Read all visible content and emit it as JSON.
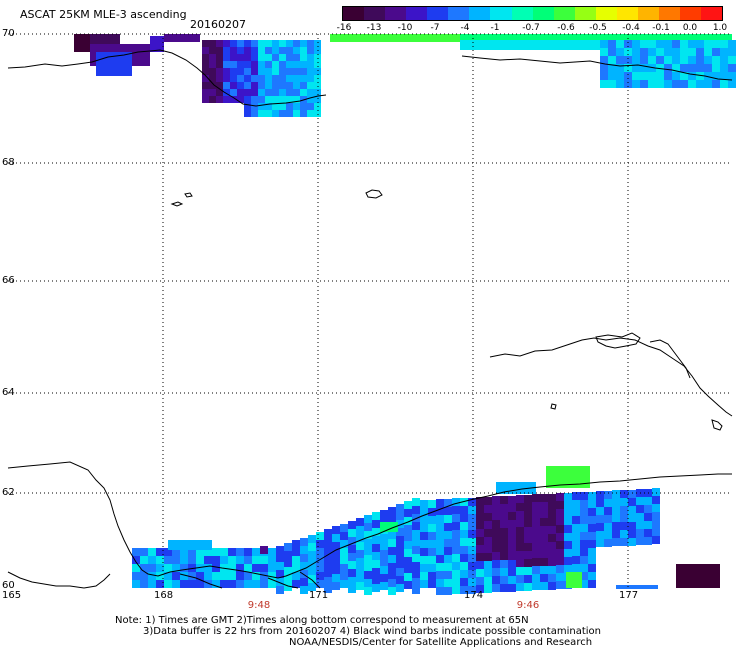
{
  "header": {
    "title": "ASCAT 25KM MLE-3 ascending",
    "date": "20160207"
  },
  "colorbar": {
    "labels": [
      "-16",
      "-13",
      "-10",
      "-7",
      "-4",
      "-1",
      "-0.7",
      "-0.6",
      "-0.5",
      "-0.4",
      "-0.1",
      "0.0",
      "1.0"
    ],
    "colors": [
      "#3a0033",
      "#3f0a5a",
      "#4b0a8c",
      "#3c14c8",
      "#1e3cf0",
      "#1e78ff",
      "#00b4ff",
      "#00e6f0",
      "#00ffb4",
      "#00ff78",
      "#3cff3c",
      "#96ff14",
      "#e6ff00",
      "#ffe600",
      "#ffb400",
      "#ff7800",
      "#ff3c00",
      "#ff1414"
    ]
  },
  "axes": {
    "lat_ticks": [
      "70",
      "68",
      "66",
      "64",
      "62",
      "60"
    ],
    "lon_ticks": [
      "165",
      "168",
      "171",
      "174",
      "177"
    ]
  },
  "times": [
    "9:48",
    "9:46"
  ],
  "notes": {
    "line1": "Note: 1) Times are GMT 2)Times along bottom correspond to measurement at 65N",
    "line2": "3)Data buffer is 22 hrs from 20160207 4) Black wind barbs indicate possible contamination",
    "line3": "NOAA/NESDIS/Center for Satellite Applications and Research"
  }
}
